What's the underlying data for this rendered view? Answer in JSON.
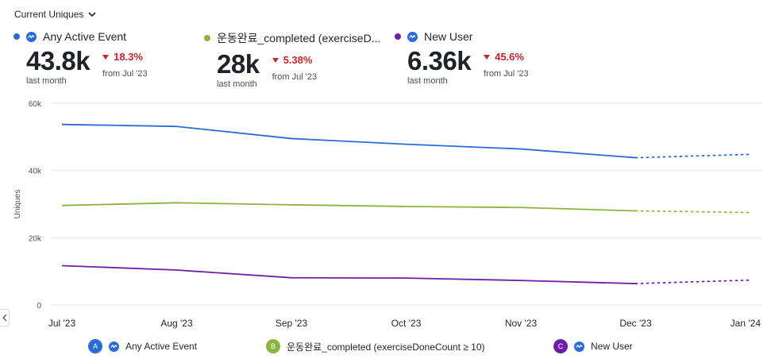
{
  "header": {
    "metric_label": "Current Uniques"
  },
  "kpis": [
    {
      "name": "Any Active Event",
      "color": "#2b6bd6",
      "value": "43.8k",
      "period": "last month",
      "change": "18.3%",
      "compare": "from Jul '23"
    },
    {
      "name": "운동완료_completed (exerciseD...",
      "color": "#8bb53c",
      "value": "28k",
      "period": "last month",
      "change": "5.38%",
      "compare": "from Jul '23"
    },
    {
      "name": "New User",
      "color": "#6f1fa6",
      "value": "6.36k",
      "period": "last month",
      "change": "45.6%",
      "compare": "from Jul '23"
    }
  ],
  "legend": [
    {
      "badge": "A",
      "name": "Any Active Event",
      "color": "#2b6bd6"
    },
    {
      "badge": "B",
      "name": "운동완료_completed (exerciseDoneCount ≥ 10)",
      "color": "#8bb53c"
    },
    {
      "badge": "C",
      "name": "New User",
      "color": "#6f1fa6"
    }
  ],
  "chart_data": {
    "type": "line",
    "ylabel": "Uniques",
    "xlabel": "",
    "ylim": [
      0,
      60000
    ],
    "yticks": [
      "0",
      "20k",
      "40k",
      "60k"
    ],
    "ytick_values": [
      0,
      20000,
      40000,
      60000
    ],
    "categories": [
      "Jul '23",
      "Aug '23",
      "Sep '23",
      "Oct '23",
      "Nov '23",
      "Dec '23",
      "Jan '24"
    ],
    "projected_from_index": 5,
    "grid": true,
    "series": [
      {
        "name": "Any Active Event",
        "color": "#2b6bd6",
        "values": [
          53700,
          53100,
          49500,
          47800,
          46400,
          43800,
          44800
        ]
      },
      {
        "name": "운동완료_completed (exerciseDoneCount ≥ 10)",
        "color": "#8bb53c",
        "values": [
          29600,
          30400,
          29800,
          29300,
          29000,
          28000,
          27500
        ]
      },
      {
        "name": "New User",
        "color": "#6f1fa6",
        "values": [
          11700,
          10400,
          8100,
          8000,
          7300,
          6360,
          7400
        ]
      }
    ]
  }
}
